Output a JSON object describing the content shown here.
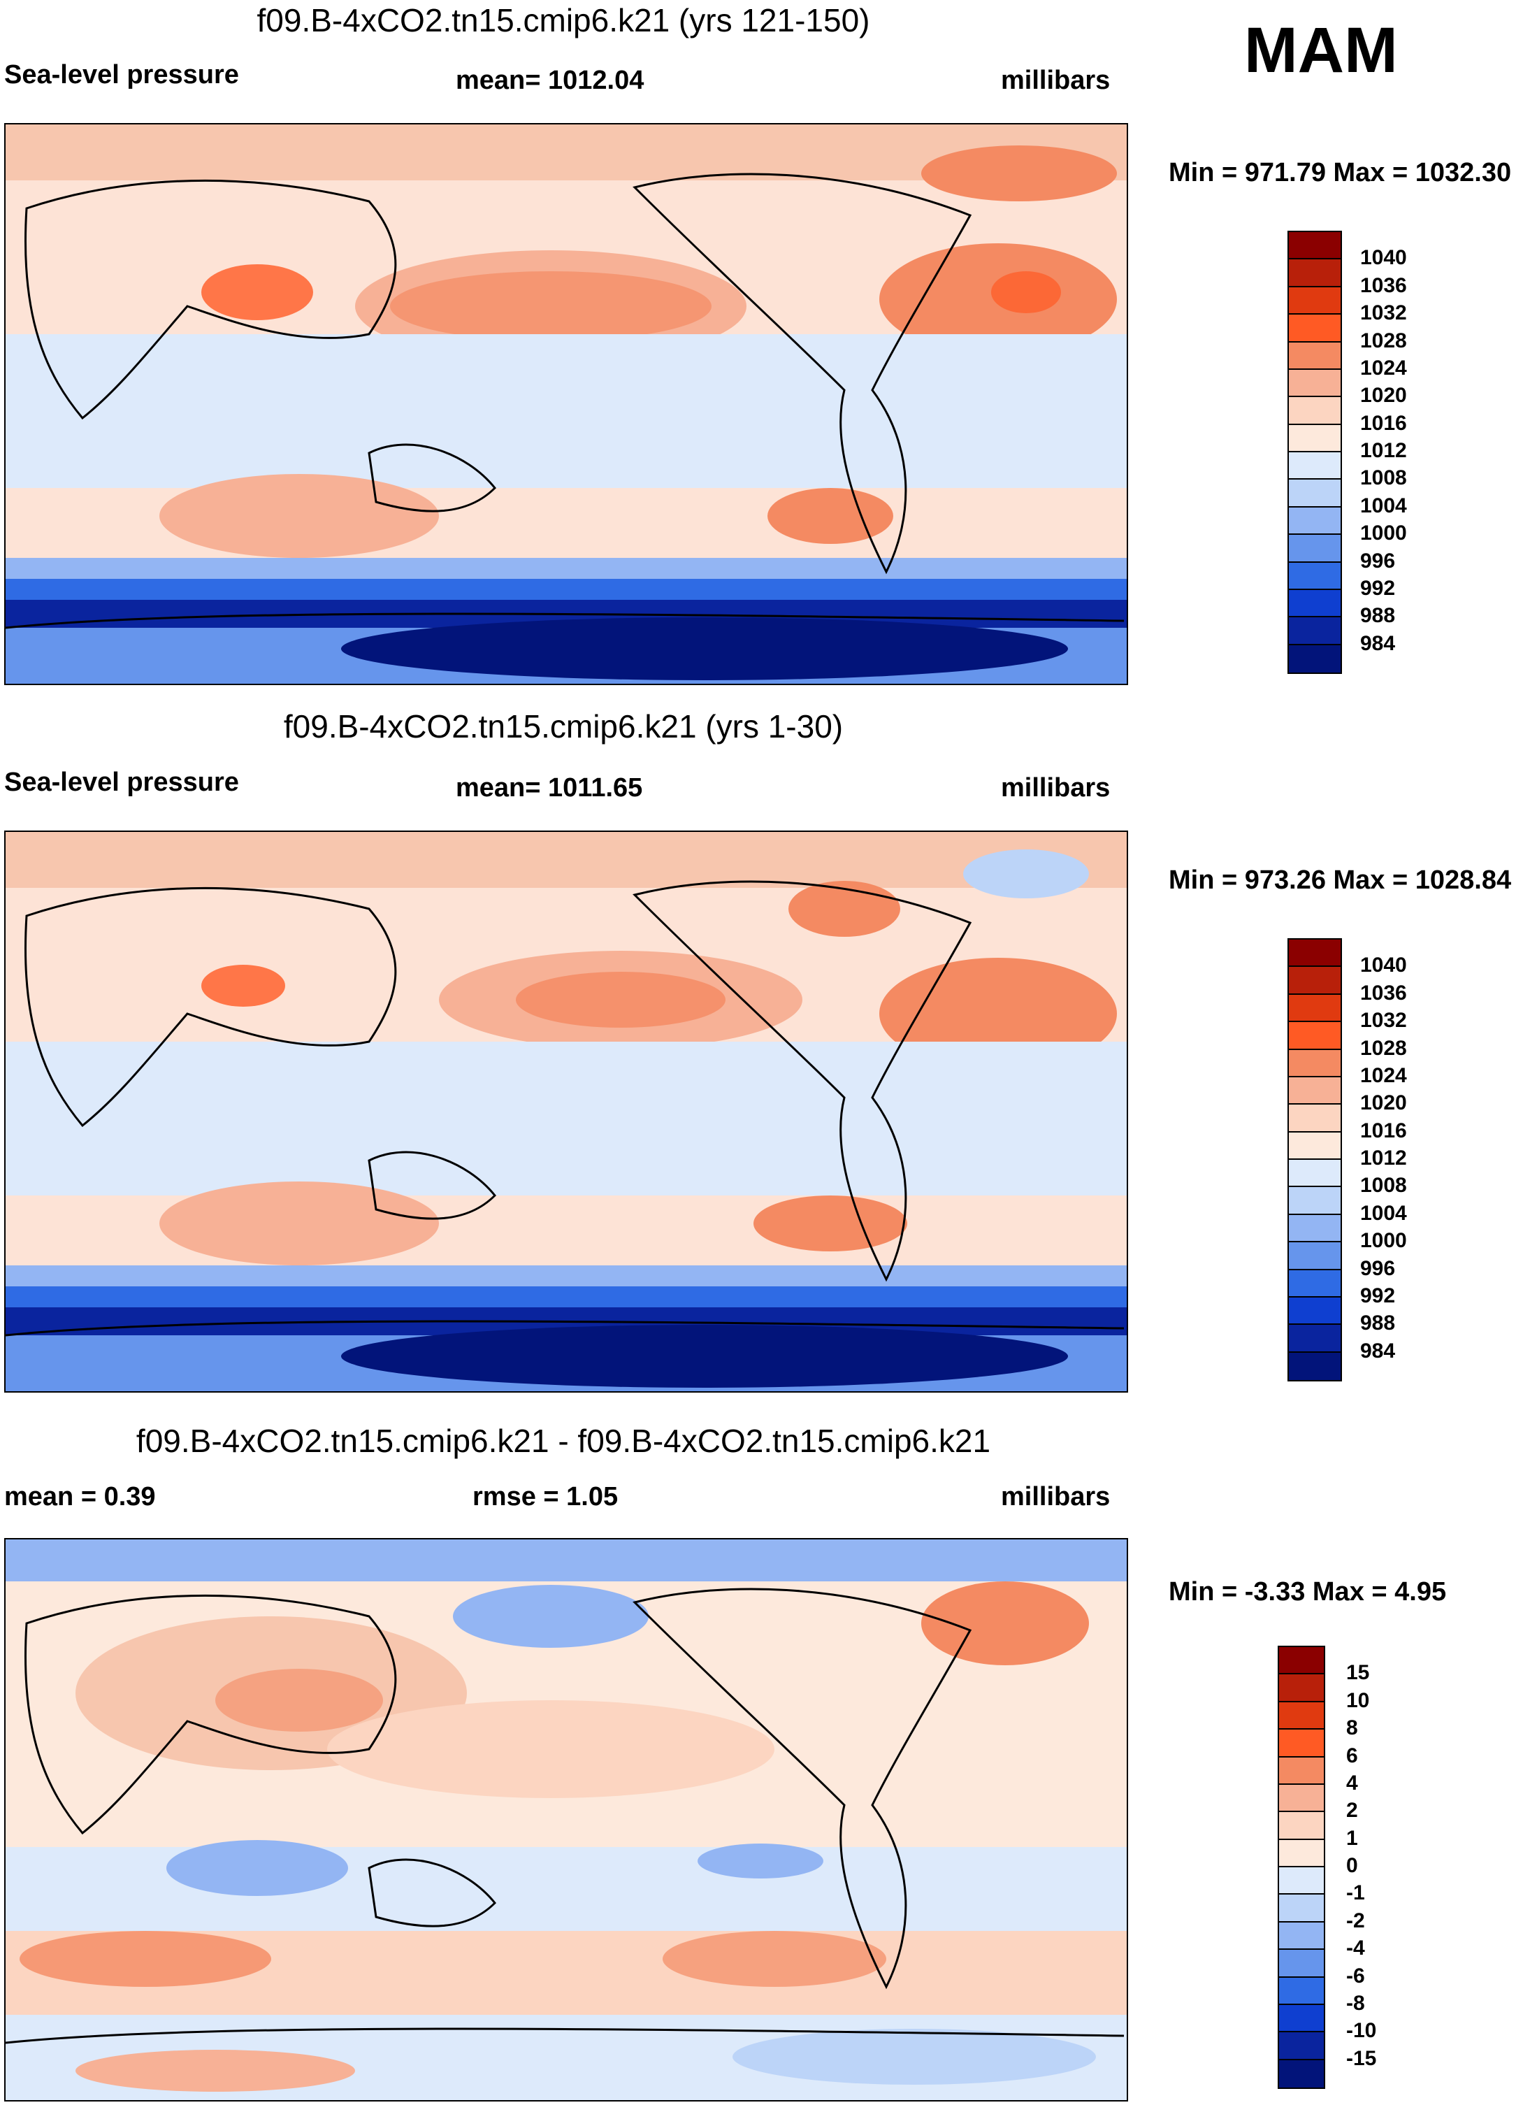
{
  "season": "MAM",
  "chart_data": [
    {
      "type": "heatmap",
      "title": "f09.B-4xCO2.tn15.cmip6.k21 (yrs 121-150)",
      "left_label": "Sea-level pressure",
      "center_label": "mean= 1012.04",
      "units": "millibars",
      "minmax": "Min = 971.79 Max = 1032.30",
      "min": 971.79,
      "max": 1032.3,
      "mean": 1012.04,
      "levels": [
        "1040",
        "1036",
        "1032",
        "1028",
        "1024",
        "1020",
        "1016",
        "1012",
        "1008",
        "1004",
        "1000",
        "996",
        "992",
        "988",
        "984"
      ],
      "colors": [
        "#8b0000",
        "#b8200a",
        "#e03a10",
        "#ff5a24",
        "#f48a62",
        "#f7b196",
        "#fcd5c1",
        "#fde9dc",
        "#ddeafb",
        "#bcd4f8",
        "#93b5f3",
        "#6695ec",
        "#2f6be4",
        "#0f3fd0",
        "#0a249e",
        "#02147a"
      ]
    },
    {
      "type": "heatmap",
      "title": "f09.B-4xCO2.tn15.cmip6.k21 (yrs 1-30)",
      "left_label": "Sea-level pressure",
      "center_label": "mean= 1011.65",
      "units": "millibars",
      "minmax": "Min = 973.26 Max = 1028.84",
      "min": 973.26,
      "max": 1028.84,
      "mean": 1011.65,
      "levels": [
        "1040",
        "1036",
        "1032",
        "1028",
        "1024",
        "1020",
        "1016",
        "1012",
        "1008",
        "1004",
        "1000",
        "996",
        "992",
        "988",
        "984"
      ],
      "colors": [
        "#8b0000",
        "#b8200a",
        "#e03a10",
        "#ff5a24",
        "#f48a62",
        "#f7b196",
        "#fcd5c1",
        "#fde9dc",
        "#ddeafb",
        "#bcd4f8",
        "#93b5f3",
        "#6695ec",
        "#2f6be4",
        "#0f3fd0",
        "#0a249e",
        "#02147a"
      ]
    },
    {
      "type": "heatmap",
      "title": "f09.B-4xCO2.tn15.cmip6.k21 - f09.B-4xCO2.tn15.cmip6.k21",
      "left_label": "mean =   0.39",
      "center_label": "rmse =   1.05",
      "units": "millibars",
      "minmax": "Min =  -3.33 Max =   4.95",
      "min": -3.33,
      "max": 4.95,
      "mean": 0.39,
      "rmse": 1.05,
      "levels": [
        "15",
        "10",
        "8",
        "6",
        "4",
        "2",
        "1",
        "0",
        "-1",
        "-2",
        "-4",
        "-6",
        "-8",
        "-10",
        "-15"
      ],
      "colors": [
        "#8b0000",
        "#b8200a",
        "#e03a10",
        "#ff5a24",
        "#f48a62",
        "#f7b196",
        "#fcd5c1",
        "#fde9dc",
        "#ddeafb",
        "#bcd4f8",
        "#93b5f3",
        "#6695ec",
        "#2f6be4",
        "#0f3fd0",
        "#0a249e",
        "#02147a"
      ]
    }
  ]
}
